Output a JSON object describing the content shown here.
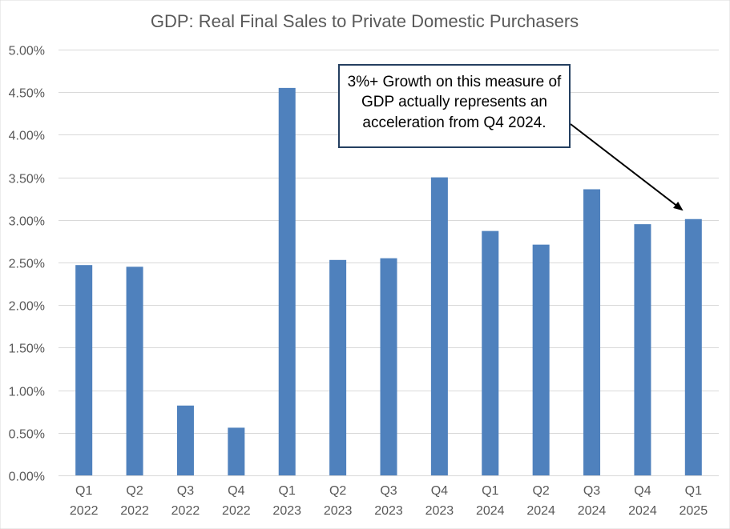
{
  "chart_data": {
    "type": "bar",
    "title": "GDP: Real Final Sales to Private Domestic Purchasers",
    "categories": [
      [
        "Q1",
        "2022"
      ],
      [
        "Q2",
        "2022"
      ],
      [
        "Q3",
        "2022"
      ],
      [
        "Q4",
        "2022"
      ],
      [
        "Q1",
        "2023"
      ],
      [
        "Q2",
        "2023"
      ],
      [
        "Q3",
        "2023"
      ],
      [
        "Q4",
        "2023"
      ],
      [
        "Q1",
        "2024"
      ],
      [
        "Q2",
        "2024"
      ],
      [
        "Q3",
        "2024"
      ],
      [
        "Q4",
        "2024"
      ],
      [
        "Q1",
        "2025"
      ]
    ],
    "values": [
      2.47,
      2.45,
      0.82,
      0.56,
      4.55,
      2.53,
      2.55,
      3.5,
      2.87,
      2.71,
      3.36,
      2.95,
      3.01
    ],
    "ylim": [
      0,
      5
    ],
    "yticks": [
      0,
      0.5,
      1.0,
      1.5,
      2.0,
      2.5,
      3.0,
      3.5,
      4.0,
      4.5,
      5.0
    ],
    "ytick_labels": [
      "0.00%",
      "0.50%",
      "1.00%",
      "1.50%",
      "2.00%",
      "2.50%",
      "3.00%",
      "3.50%",
      "4.00%",
      "4.50%",
      "5.00%"
    ],
    "grid": true,
    "bar_color": "#4f81bd",
    "annotation": {
      "lines": [
        "3%+ Growth on this measure of",
        "GDP actually represents  an",
        "acceleration from Q4 2024."
      ],
      "points_to_category": 12,
      "border_color": "#243f60"
    }
  }
}
